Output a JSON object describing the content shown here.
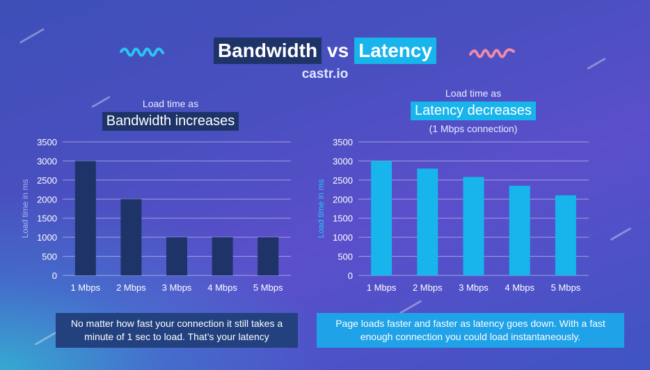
{
  "header": {
    "title_left": "Bandwidth",
    "title_vs": "vs",
    "title_right": "Latency",
    "brand": "castr.io"
  },
  "colors": {
    "dark_bar": "#1e3469",
    "light_bar": "#18b4ec"
  },
  "chart_data": [
    {
      "type": "bar",
      "title_small": "Load time as",
      "title_main": "Bandwidth increases",
      "subtitle": "",
      "ylabel": "Load time in ms",
      "xlabel": "",
      "categories": [
        "1 Mbps",
        "2 Mbps",
        "3 Mbps",
        "4 Mbps",
        "5 Mbps"
      ],
      "values": [
        3000,
        2000,
        1000,
        1000,
        1000
      ],
      "ylim": [
        0,
        3500
      ],
      "yticks": [
        0,
        500,
        1000,
        1500,
        2000,
        2500,
        3000,
        3500
      ],
      "grid": true,
      "color": "#1e3469",
      "caption": "No matter how fast your connection it still takes a minute of 1 sec to load. That’s your latency"
    },
    {
      "type": "bar",
      "title_small": "Load time as",
      "title_main": "Latency decreases",
      "subtitle": "(1 Mbps connection)",
      "ylabel": "Load time in ms",
      "xlabel": "",
      "categories": [
        "1 Mbps",
        "2 Mbps",
        "3 Mbps",
        "4 Mbps",
        "5 Mbps"
      ],
      "values": [
        3000,
        2800,
        2580,
        2350,
        2100
      ],
      "ylim": [
        0,
        3500
      ],
      "yticks": [
        0,
        500,
        1000,
        1500,
        2000,
        2500,
        3000,
        3500
      ],
      "grid": true,
      "color": "#18b4ec",
      "caption": "Page loads faster and faster as latency goes down. With a fast enough connection you could load instantaneously."
    }
  ]
}
